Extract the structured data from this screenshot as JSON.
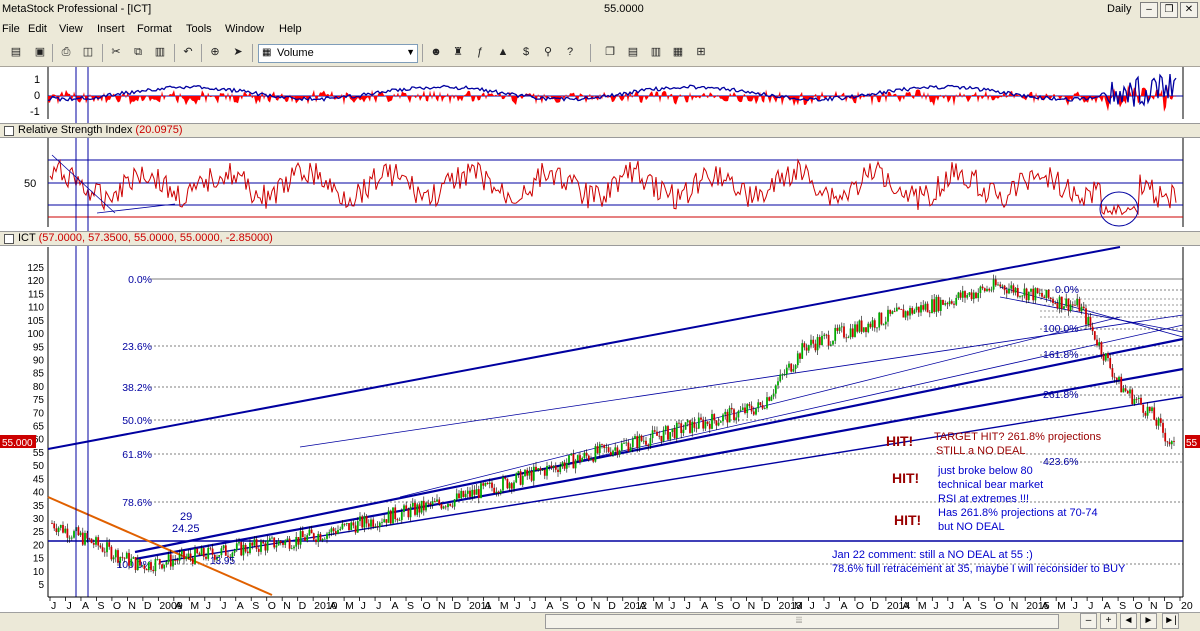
{
  "window": {
    "title": "MetaStock Professional - [ICT]",
    "center_value": "55.0000",
    "periodicity": "Daily"
  },
  "menu": [
    "File",
    "Edit",
    "View",
    "Insert",
    "Format",
    "Tools",
    "Window",
    "Help"
  ],
  "toolbar": {
    "indicator_select": "Volume"
  },
  "panes": {
    "osc": {
      "ticks": [
        "1",
        "0",
        "-1"
      ]
    },
    "rsi": {
      "title": "Relative Strength Index",
      "value": "(20.0975)",
      "ticks": [
        "50"
      ]
    },
    "price": {
      "title": "ICT",
      "value": "(57.0000, 57.3500, 55.0000, 55.0000, -2.85000)",
      "last_price": "55.000"
    }
  },
  "price_axis": [
    "125",
    "120",
    "115",
    "110",
    "105",
    "100",
    "95",
    "90",
    "85",
    "80",
    "75",
    "70",
    "65",
    "60",
    "55",
    "50",
    "45",
    "40",
    "35",
    "30",
    "25",
    "20",
    "15",
    "10",
    "5"
  ],
  "fib_left": [
    "0.0%",
    "23.6%",
    "38.2%",
    "50.0%",
    "61.8%",
    "78.6%",
    "100.0%"
  ],
  "fib_right": [
    "0.0%",
    "100.0%",
    "161.8%",
    "261.8%",
    "423.6%"
  ],
  "price_marks": {
    "a": "29",
    "b": "24.25",
    "c": "13.95"
  },
  "annotations": {
    "hit1": "HIT!",
    "hit2": "HIT!",
    "hit3": "HIT!",
    "target": "TARGET HIT? 261.8% projections",
    "still": "STILL a NO DEAL",
    "note1": "just broke below 80",
    "note2": "technical bear market",
    "note3": "RSI at extremes !!!",
    "note4": "Has 261.8% projections at 70-74",
    "note5": "but NO DEAL",
    "jan1": "Jan 22 comment: still a NO DEAL at 55 :)",
    "jan2": "78.6% full retracement at 35, maybe I will reconsider to BUY"
  },
  "x_axis": [
    "J",
    "J",
    "A",
    "S",
    "O",
    "N",
    "D",
    "2009",
    "A",
    "M",
    "J",
    "J",
    "A",
    "S",
    "O",
    "N",
    "D",
    "2010",
    "A",
    "M",
    "J",
    "J",
    "A",
    "S",
    "O",
    "N",
    "D",
    "2011",
    "A",
    "M",
    "J",
    "J",
    "A",
    "S",
    "O",
    "N",
    "D",
    "2012",
    "A",
    "M",
    "J",
    "J",
    "A",
    "S",
    "O",
    "N",
    "D",
    "2013",
    "M",
    "J",
    "J",
    "A",
    "O",
    "D",
    "2014",
    "A",
    "M",
    "J",
    "J",
    "A",
    "S",
    "O",
    "N",
    "2015",
    "A",
    "M",
    "J",
    "J",
    "A",
    "S",
    "O",
    "N",
    "D",
    "20"
  ],
  "chart_data": {
    "type": "candlestick",
    "series": [
      {
        "name": "ICT",
        "x": [
          "2008-07",
          "2009-03",
          "2010-01",
          "2011-01",
          "2012-01",
          "2013-01",
          "2013-06",
          "2014-01",
          "2014-09",
          "2015-05",
          "2015-09",
          "2015-12",
          "2016-01-22"
        ],
        "close": [
          28,
          12,
          22,
          37,
          55,
          72,
          95,
          105,
          118,
          110,
          80,
          70,
          55
        ]
      }
    ],
    "ylim": [
      5,
      125
    ]
  },
  "colors": {
    "up": "#00aa00",
    "down": "#cc0000",
    "channel": "#0000a0",
    "rsi": "#cc0000",
    "osc_line": "#0000a0",
    "annot_red": "#990000",
    "annot_blue": "#0000cc"
  }
}
